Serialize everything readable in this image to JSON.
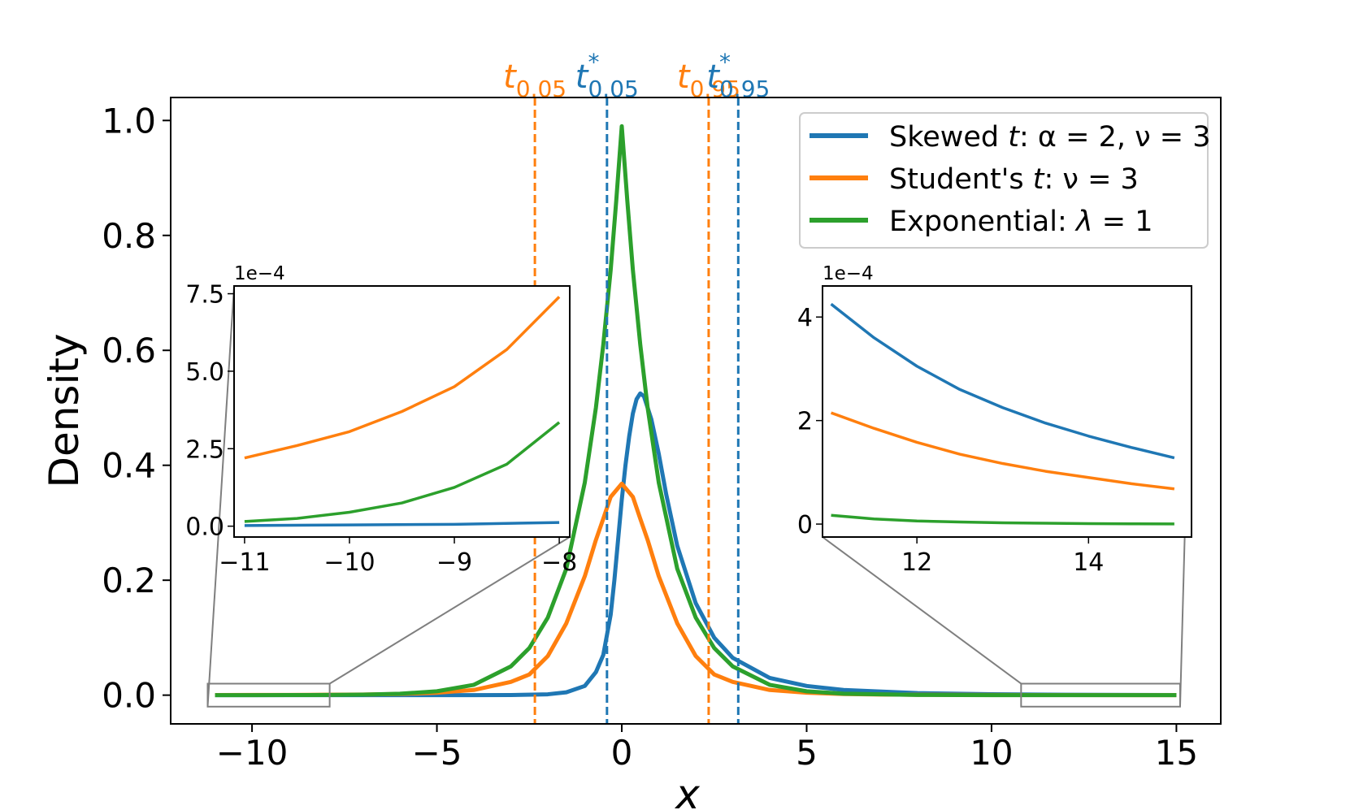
{
  "chart_data": {
    "type": "line",
    "xlabel": "x",
    "ylabel": "Density",
    "xlim": [
      -12.2,
      16.2
    ],
    "ylim": [
      -0.05,
      1.04
    ],
    "xticks": [
      -10,
      -5,
      0,
      5,
      10,
      15
    ],
    "xtick_labels": [
      "−10",
      "−5",
      "0",
      "5",
      "10",
      "15"
    ],
    "yticks": [
      0.0,
      0.2,
      0.4,
      0.6,
      0.8,
      1.0
    ],
    "ytick_labels": [
      "0.0",
      "0.2",
      "0.4",
      "0.6",
      "0.8",
      "1.0"
    ],
    "grid": false,
    "legend_position": "top-right",
    "series": [
      {
        "name": "Skewed t: α = 2, ν = 3",
        "color": "#1f77b4",
        "x": [
          -11,
          -10,
          -9,
          -8,
          -6,
          -4,
          -3,
          -2,
          -1.5,
          -1,
          -0.7,
          -0.5,
          -0.3,
          -0.2,
          -0.1,
          0,
          0.1,
          0.2,
          0.3,
          0.4,
          0.5,
          0.6,
          0.8,
          1.0,
          1.2,
          1.5,
          2,
          2.5,
          3,
          4,
          5,
          6,
          8,
          10,
          12,
          15
        ],
        "y": [
          1e-06,
          1e-06,
          1e-06,
          2e-06,
          1e-05,
          6e-05,
          0.00025,
          0.0015,
          0.005,
          0.016,
          0.04,
          0.07,
          0.14,
          0.2,
          0.27,
          0.34,
          0.4,
          0.45,
          0.49,
          0.515,
          0.525,
          0.52,
          0.48,
          0.42,
          0.35,
          0.26,
          0.16,
          0.1,
          0.065,
          0.03,
          0.016,
          0.009,
          0.0035,
          0.0016,
          0.0008,
          0.00013
        ]
      },
      {
        "name": "Student's t: ν = 3",
        "color": "#ff7f0e",
        "x": [
          -11,
          -10,
          -9,
          -8,
          -7,
          -6,
          -5,
          -4,
          -3,
          -2.5,
          -2,
          -1.5,
          -1,
          -0.7,
          -0.5,
          -0.3,
          0,
          0.3,
          0.5,
          0.7,
          1,
          1.5,
          2,
          2.5,
          3,
          4,
          5,
          6,
          7,
          8,
          10,
          12,
          15
        ],
        "y": [
          0.00022,
          0.0003,
          0.00044,
          0.00071,
          0.0011,
          0.0019,
          0.0042,
          0.009,
          0.023,
          0.036,
          0.068,
          0.125,
          0.207,
          0.27,
          0.307,
          0.345,
          0.368,
          0.345,
          0.307,
          0.27,
          0.207,
          0.125,
          0.068,
          0.036,
          0.023,
          0.009,
          0.0042,
          0.0019,
          0.0011,
          0.00071,
          0.0003,
          0.00015,
          6e-05
        ]
      },
      {
        "name": "Exponential: λ = 1",
        "color": "#2ca02c",
        "x": [
          -11,
          -10,
          -9,
          -8,
          -7,
          -6,
          -5,
          -4,
          -3,
          -2.5,
          -2,
          -1.5,
          -1,
          -0.7,
          -0.5,
          -0.3,
          -0.15,
          0,
          0.15,
          0.3,
          0.5,
          0.7,
          1,
          1.5,
          2,
          2.5,
          3,
          4,
          5,
          6,
          8,
          10,
          12,
          15
        ],
        "y": [
          1.7e-05,
          4.5e-05,
          0.00012,
          0.00034,
          0.0009,
          0.0025,
          0.0067,
          0.018,
          0.05,
          0.082,
          0.135,
          0.22,
          0.37,
          0.5,
          0.61,
          0.74,
          0.86,
          0.99,
          0.86,
          0.74,
          0.61,
          0.5,
          0.37,
          0.22,
          0.135,
          0.082,
          0.05,
          0.018,
          0.0067,
          0.0025,
          0.00034,
          4.5e-05,
          6e-06,
          3e-07
        ]
      }
    ],
    "vlines": [
      {
        "label": "t",
        "sub": "0.05",
        "star": false,
        "x": -2.35,
        "color": "#ff7f0e"
      },
      {
        "label": "t",
        "sub": "0.05",
        "star": true,
        "x": -0.4,
        "color": "#1f77b4"
      },
      {
        "label": "t",
        "sub": "0.95",
        "star": false,
        "x": 2.35,
        "color": "#ff7f0e"
      },
      {
        "label": "t",
        "sub": "0.95",
        "star": true,
        "x": 3.15,
        "color": "#1f77b4"
      }
    ],
    "zoom_boxes": [
      {
        "xlim": [
          -11.2,
          -7.9
        ],
        "ylim": [
          -0.02,
          0.02
        ]
      },
      {
        "xlim": [
          10.8,
          15.1
        ],
        "ylim": [
          -0.02,
          0.02
        ]
      }
    ],
    "insets": [
      {
        "name": "left",
        "scale_label": "1e−4",
        "xlim": [
          -11.1,
          -7.9
        ],
        "ylim": [
          -0.35,
          7.75
        ],
        "xticks": [
          -11,
          -10,
          -9,
          -8
        ],
        "xtick_labels": [
          "−11",
          "−10",
          "−9",
          "−8"
        ],
        "yticks": [
          0.0,
          2.5,
          5.0,
          7.5
        ],
        "ytick_labels": [
          "0.0",
          "2.5",
          "5.0",
          "7.5"
        ],
        "series": [
          {
            "color": "#ff7f0e",
            "x": [
              -11,
              -10.5,
              -10,
              -9.5,
              -9,
              -8.5,
              -8
            ],
            "y": [
              2.2,
              2.6,
              3.05,
              3.7,
              4.5,
              5.7,
              7.4
            ]
          },
          {
            "color": "#2ca02c",
            "x": [
              -11,
              -10.5,
              -10,
              -9.5,
              -9,
              -8.5,
              -8
            ],
            "y": [
              0.15,
              0.25,
              0.45,
              0.75,
              1.25,
              2.0,
              3.35
            ]
          },
          {
            "color": "#1f77b4",
            "x": [
              -11,
              -10,
              -9,
              -8
            ],
            "y": [
              0.02,
              0.04,
              0.06,
              0.12
            ]
          }
        ]
      },
      {
        "name": "right",
        "scale_label": "1e−4",
        "xlim": [
          10.9,
          15.2
        ],
        "ylim": [
          -0.25,
          4.6
        ],
        "xticks": [
          12,
          14
        ],
        "xtick_labels": [
          "12",
          "14"
        ],
        "yticks": [
          0,
          2,
          4
        ],
        "ytick_labels": [
          "0",
          "2",
          "4"
        ],
        "series": [
          {
            "color": "#1f77b4",
            "x": [
              11,
              11.5,
              12,
              12.5,
              13,
              13.5,
              14,
              14.5,
              15
            ],
            "y": [
              4.25,
              3.6,
              3.05,
              2.6,
              2.25,
              1.95,
              1.7,
              1.48,
              1.28
            ]
          },
          {
            "color": "#ff7f0e",
            "x": [
              11,
              11.5,
              12,
              12.5,
              13,
              13.5,
              14,
              14.5,
              15
            ],
            "y": [
              2.15,
              1.85,
              1.58,
              1.35,
              1.17,
              1.02,
              0.9,
              0.78,
              0.68
            ]
          },
          {
            "color": "#2ca02c",
            "x": [
              11,
              11.5,
              12,
              12.5,
              13,
              13.5,
              14,
              14.5,
              15
            ],
            "y": [
              0.17,
              0.1,
              0.06,
              0.04,
              0.025,
              0.016,
              0.01,
              0.006,
              0.004
            ]
          }
        ]
      }
    ]
  },
  "legend": {
    "items": [
      {
        "prefix": "Skewed ",
        "var": "t",
        "rest": ": α = 2, ν = 3",
        "color": "#1f77b4"
      },
      {
        "prefix": "Student's ",
        "var": "t",
        "rest": ": ν = 3",
        "color": "#ff7f0e"
      },
      {
        "prefix": "Exponential: ",
        "var": "λ",
        "rest": " = 1",
        "color": "#2ca02c"
      }
    ]
  }
}
